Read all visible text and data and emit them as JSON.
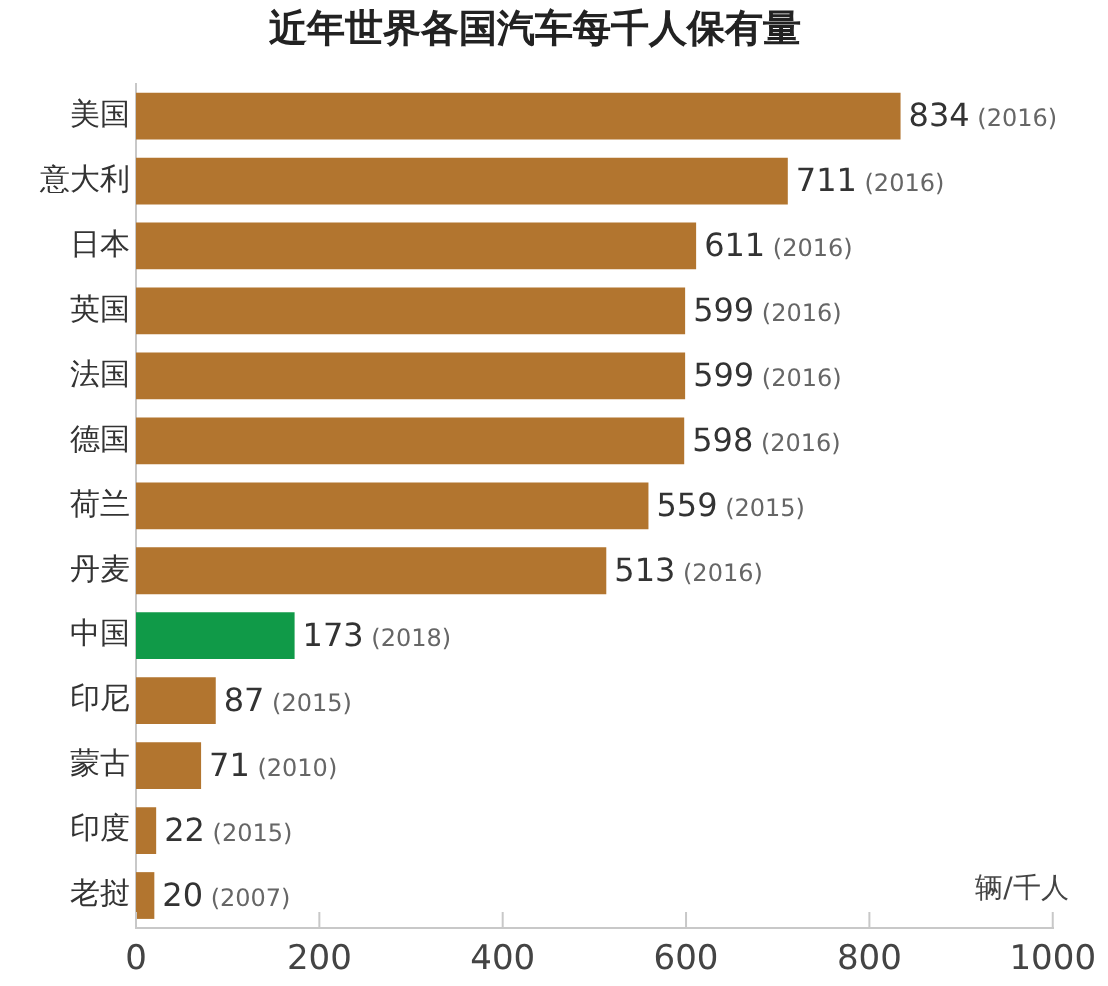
{
  "chart_data": {
    "type": "bar",
    "orientation": "horizontal",
    "title": "近年世界各国汽车每千人保有量",
    "xlabel": "辆/千人",
    "categories": [
      "美国",
      "意大利",
      "日本",
      "英国",
      "法国",
      "德国",
      "荷兰",
      "丹麦",
      "中国",
      "印尼",
      "蒙古",
      "印度",
      "老挝"
    ],
    "values": [
      834,
      711,
      611,
      599,
      599,
      598,
      559,
      513,
      173,
      87,
      71,
      22,
      20
    ],
    "colors": [
      "#b2752f",
      "#b2752f",
      "#b2752f",
      "#b2752f",
      "#b2752f",
      "#b2752f",
      "#b2752f",
      "#b2752f",
      "#109a48",
      "#b2752f",
      "#b2752f",
      "#b2752f",
      "#b2752f"
    ],
    "value_labels": [
      "834 (2016)",
      "711 (2016)",
      "611 (2016)",
      "599 (2016)",
      "599 (2016)",
      "598 (2016)",
      "559 (2015)",
      "513 (2016)",
      "173 (2018)",
      "87 (2015)",
      "71 (2010)",
      "22 (2015)",
      "20 (2007)"
    ],
    "xlim": [
      0,
      1000
    ],
    "xticks": [
      0,
      200,
      400,
      600,
      800,
      1000
    ]
  }
}
